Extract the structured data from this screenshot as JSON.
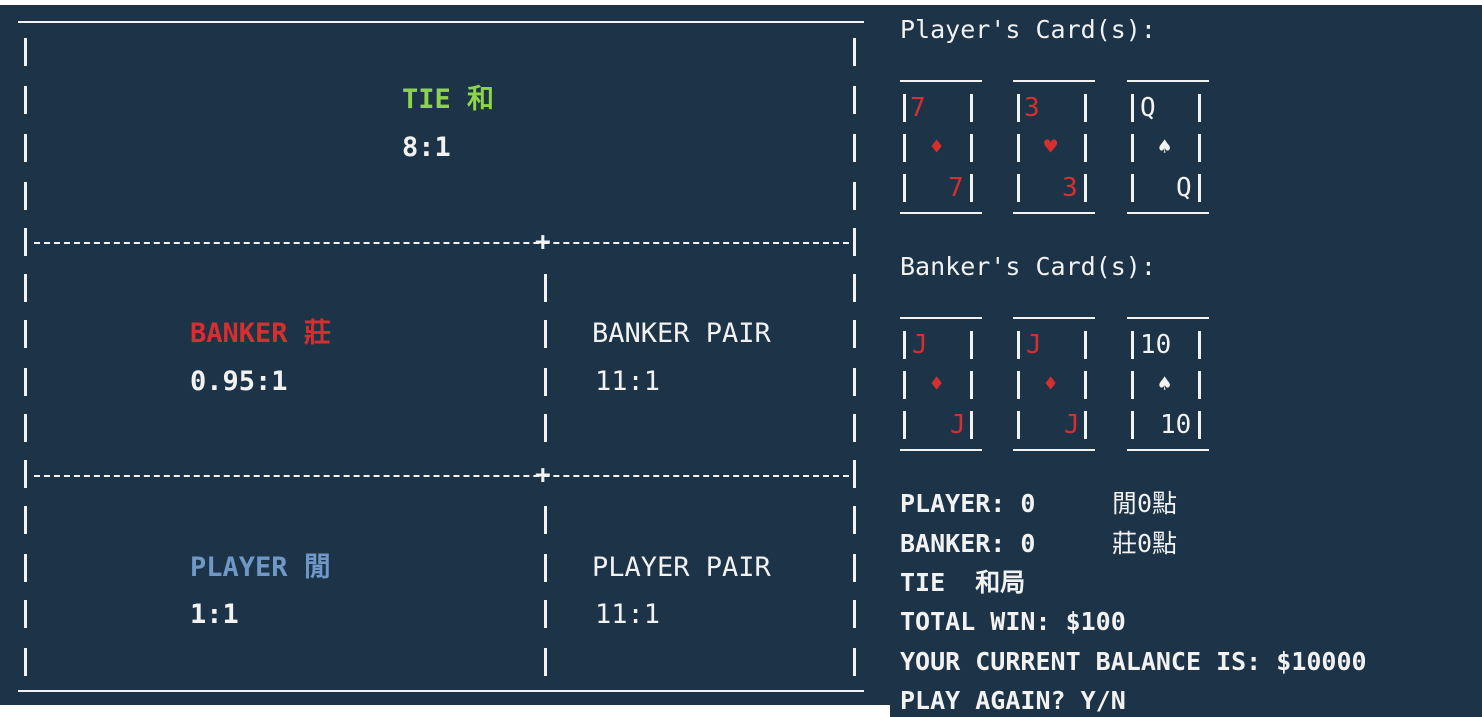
{
  "table": {
    "tie": {
      "label": "TIE",
      "chinese": "和",
      "payout": "8:1",
      "color": "#8fd34a"
    },
    "banker": {
      "label": "BANKER",
      "chinese": "莊",
      "payout": "0.95:1",
      "color": "#d62f2f"
    },
    "banker_pair": {
      "label": "BANKER PAIR",
      "payout": "11:1"
    },
    "player": {
      "label": "PLAYER",
      "chinese": "閒",
      "payout": "1:1",
      "color": "#6f98c7"
    },
    "player_pair": {
      "label": "PLAYER PAIR",
      "payout": "11:1"
    }
  },
  "player_cards": {
    "heading": "Player's Card(s):",
    "cards": [
      {
        "rank": "7",
        "suit": "♦",
        "color": "red"
      },
      {
        "rank": "3",
        "suit": "♥",
        "color": "red"
      },
      {
        "rank": "Q",
        "suit": "♠",
        "color": "white"
      }
    ]
  },
  "banker_cards": {
    "heading": "Banker's Card(s):",
    "cards": [
      {
        "rank": "J",
        "suit": "♦",
        "color": "red"
      },
      {
        "rank": "J",
        "suit": "♦",
        "color": "red"
      },
      {
        "rank": "10",
        "suit": "♠",
        "color": "white"
      }
    ]
  },
  "results": {
    "player_line": "PLAYER: 0",
    "player_points": "閒0點",
    "banker_line": "BANKER: 0",
    "banker_points": "莊0點",
    "outcome": "TIE",
    "outcome_chinese": "和局",
    "total_win": "TOTAL WIN: $100",
    "balance": "YOUR CURRENT BALANCE IS: $10000",
    "prompt": "PLAY AGAIN? Y/N"
  },
  "colors": {
    "background": "#1c3348",
    "foreground": "#f2f2f2"
  }
}
